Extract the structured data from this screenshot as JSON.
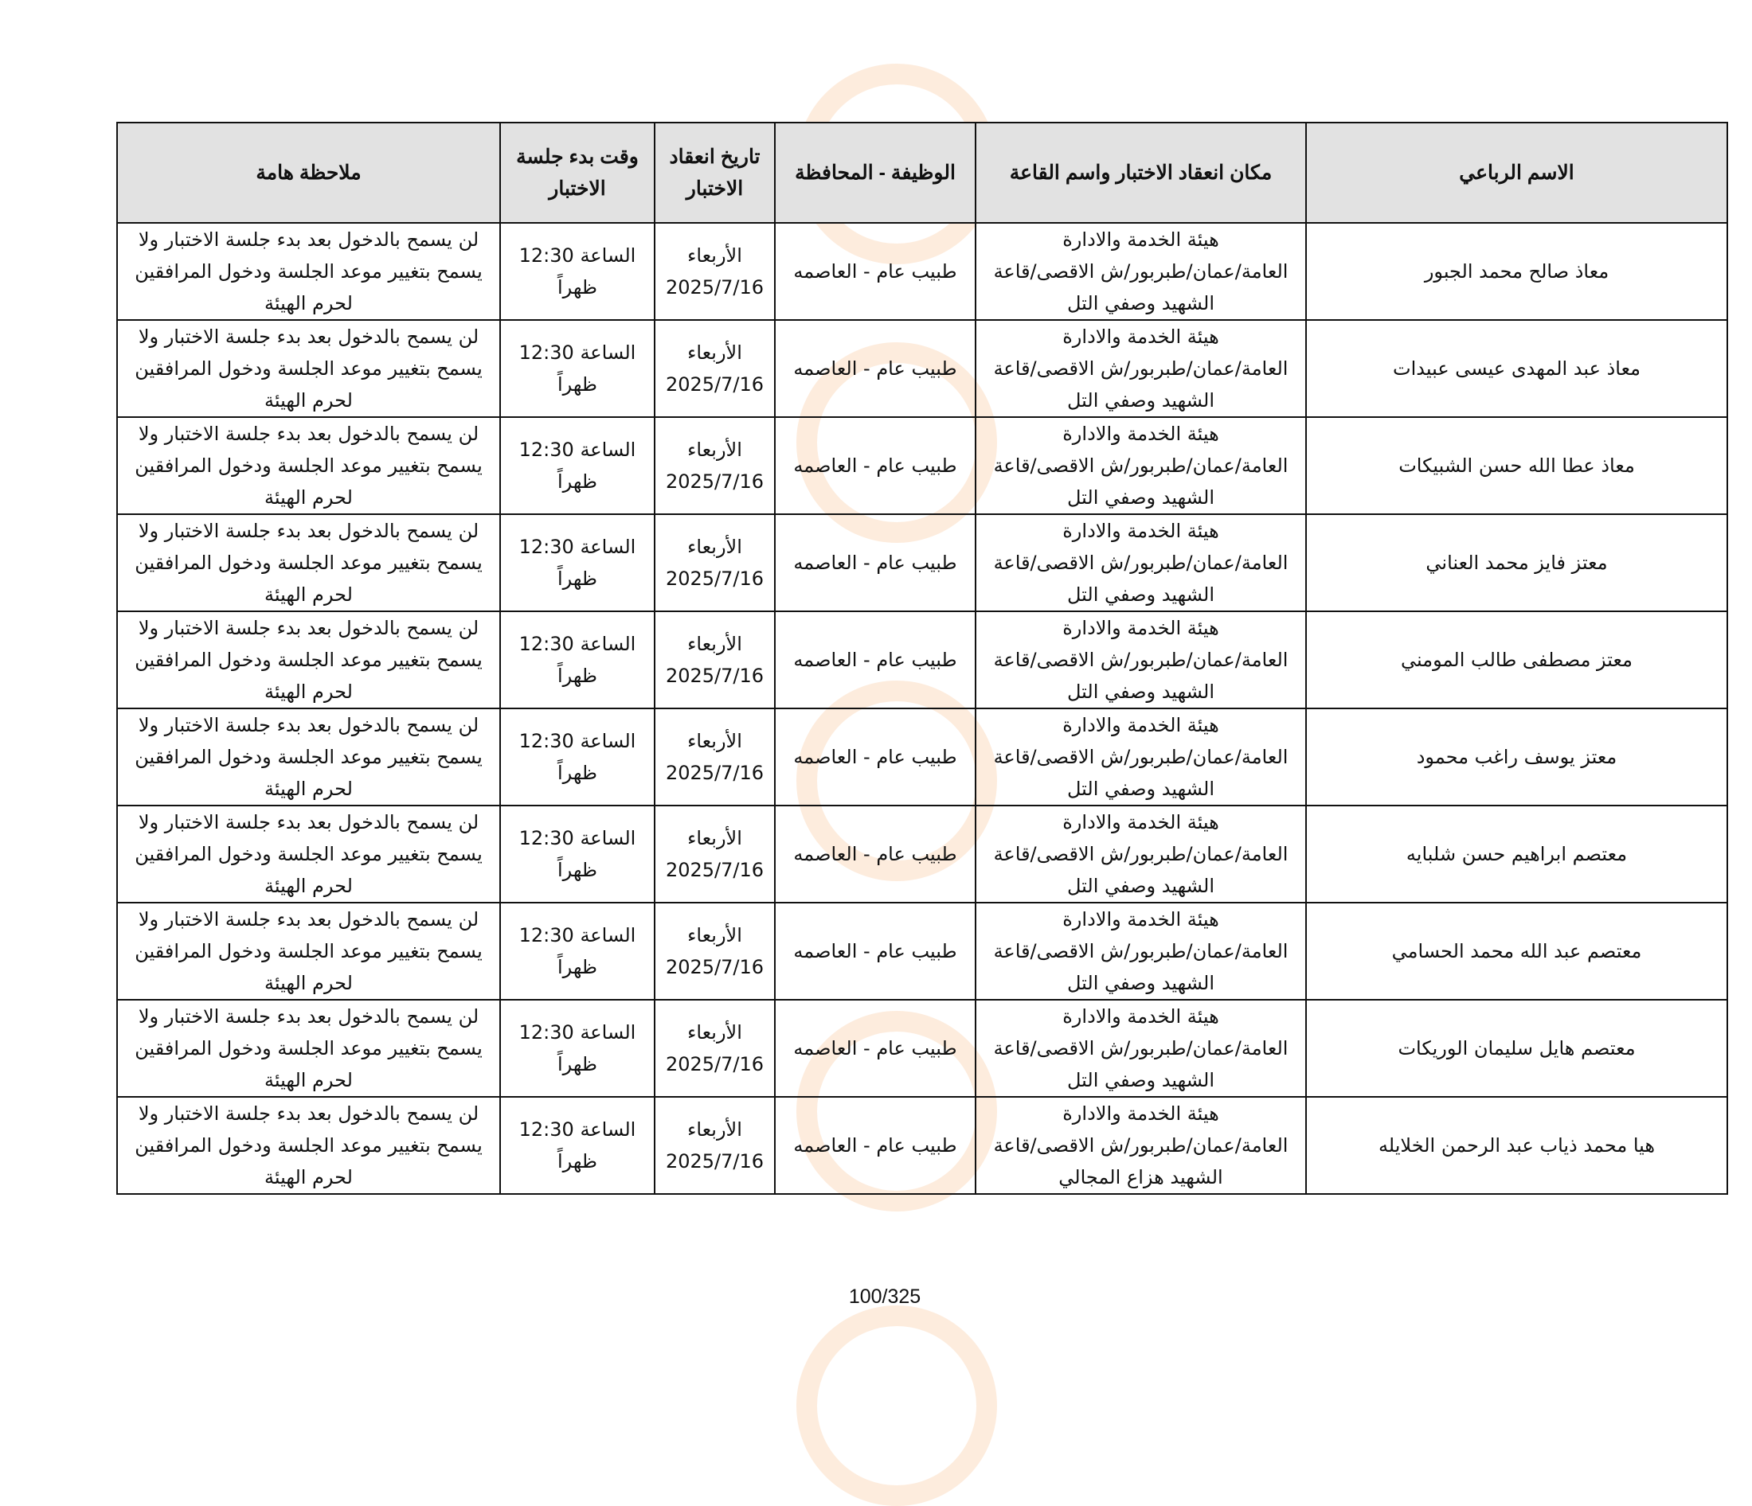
{
  "headers": [
    "الاسم الرباعي",
    "مكان انعقاد الاختبار واسم القاعة",
    "الوظيفة - المحافظة",
    "تاريخ انعقاد الاختبار",
    "وقت بدء جلسة الاختبار",
    "ملاحظة هامة"
  ],
  "rows": [
    {
      "name": "معاذ صالح محمد الجبور",
      "location": [
        "هيئة الخدمة والادارة",
        "العامة/عمان/طبربور/ش الاقصى/قاعة",
        "الشهيد وصفي التل"
      ],
      "job": "طبيب عام - العاصمه",
      "date": [
        "الأربعاء",
        "2025/7/16"
      ],
      "time": [
        "الساعة 12:30",
        "ظهراً"
      ],
      "note": [
        "لن يسمح بالدخول بعد بدء جلسة الاختبار ولا",
        "يسمح بتغيير موعد الجلسة ودخول المرافقين",
        "لحرم الهيئة"
      ]
    },
    {
      "name": "معاذ عبد المهدى عيسى عبيدات",
      "location": [
        "هيئة الخدمة والادارة",
        "العامة/عمان/طبربور/ش الاقصى/قاعة",
        "الشهيد وصفي التل"
      ],
      "job": "طبيب عام - العاصمه",
      "date": [
        "الأربعاء",
        "2025/7/16"
      ],
      "time": [
        "الساعة 12:30",
        "ظهراً"
      ],
      "note": [
        "لن يسمح بالدخول بعد بدء جلسة الاختبار ولا",
        "يسمح بتغيير موعد الجلسة ودخول المرافقين",
        "لحرم الهيئة"
      ]
    },
    {
      "name": "معاذ عطا الله حسن الشبيكات",
      "location": [
        "هيئة الخدمة والادارة",
        "العامة/عمان/طبربور/ش الاقصى/قاعة",
        "الشهيد وصفي التل"
      ],
      "job": "طبيب عام - العاصمه",
      "date": [
        "الأربعاء",
        "2025/7/16"
      ],
      "time": [
        "الساعة 12:30",
        "ظهراً"
      ],
      "note": [
        "لن يسمح بالدخول بعد بدء جلسة الاختبار ولا",
        "يسمح بتغيير موعد الجلسة ودخول المرافقين",
        "لحرم الهيئة"
      ]
    },
    {
      "name": "معتز فايز محمد العناني",
      "location": [
        "هيئة الخدمة والادارة",
        "العامة/عمان/طبربور/ش الاقصى/قاعة",
        "الشهيد وصفي التل"
      ],
      "job": "طبيب عام - العاصمه",
      "date": [
        "الأربعاء",
        "2025/7/16"
      ],
      "time": [
        "الساعة 12:30",
        "ظهراً"
      ],
      "note": [
        "لن يسمح بالدخول بعد بدء جلسة الاختبار ولا",
        "يسمح بتغيير موعد الجلسة ودخول المرافقين",
        "لحرم الهيئة"
      ]
    },
    {
      "name": "معتز مصطفى طالب المومني",
      "location": [
        "هيئة الخدمة والادارة",
        "العامة/عمان/طبربور/ش الاقصى/قاعة",
        "الشهيد وصفي التل"
      ],
      "job": "طبيب عام - العاصمه",
      "date": [
        "الأربعاء",
        "2025/7/16"
      ],
      "time": [
        "الساعة 12:30",
        "ظهراً"
      ],
      "note": [
        "لن يسمح بالدخول بعد بدء جلسة الاختبار ولا",
        "يسمح بتغيير موعد الجلسة ودخول المرافقين",
        "لحرم الهيئة"
      ]
    },
    {
      "name": "معتز يوسف راغب محمود",
      "location": [
        "هيئة الخدمة والادارة",
        "العامة/عمان/طبربور/ش الاقصى/قاعة",
        "الشهيد وصفي التل"
      ],
      "job": "طبيب عام - العاصمه",
      "date": [
        "الأربعاء",
        "2025/7/16"
      ],
      "time": [
        "الساعة 12:30",
        "ظهراً"
      ],
      "note": [
        "لن يسمح بالدخول بعد بدء جلسة الاختبار ولا",
        "يسمح بتغيير موعد الجلسة ودخول المرافقين",
        "لحرم الهيئة"
      ]
    },
    {
      "name": "معتصم ابراهيم حسن شلبايه",
      "location": [
        "هيئة الخدمة والادارة",
        "العامة/عمان/طبربور/ش الاقصى/قاعة",
        "الشهيد وصفي التل"
      ],
      "job": "طبيب عام - العاصمه",
      "date": [
        "الأربعاء",
        "2025/7/16"
      ],
      "time": [
        "الساعة 12:30",
        "ظهراً"
      ],
      "note": [
        "لن يسمح بالدخول بعد بدء جلسة الاختبار ولا",
        "يسمح بتغيير موعد الجلسة ودخول المرافقين",
        "لحرم الهيئة"
      ]
    },
    {
      "name": "معتصم عبد الله محمد الحسامي",
      "location": [
        "هيئة الخدمة والادارة",
        "العامة/عمان/طبربور/ش الاقصى/قاعة",
        "الشهيد وصفي التل"
      ],
      "job": "طبيب عام - العاصمه",
      "date": [
        "الأربعاء",
        "2025/7/16"
      ],
      "time": [
        "الساعة 12:30",
        "ظهراً"
      ],
      "note": [
        "لن يسمح بالدخول بعد بدء جلسة الاختبار ولا",
        "يسمح بتغيير موعد الجلسة ودخول المرافقين",
        "لحرم الهيئة"
      ]
    },
    {
      "name": "معتصم هايل سليمان الوريكات",
      "location": [
        "هيئة الخدمة والادارة",
        "العامة/عمان/طبربور/ش الاقصى/قاعة",
        "الشهيد وصفي التل"
      ],
      "job": "طبيب عام - العاصمه",
      "date": [
        "الأربعاء",
        "2025/7/16"
      ],
      "time": [
        "الساعة 12:30",
        "ظهراً"
      ],
      "note": [
        "لن يسمح بالدخول بعد بدء جلسة الاختبار ولا",
        "يسمح بتغيير موعد الجلسة ودخول المرافقين",
        "لحرم الهيئة"
      ]
    },
    {
      "name": "هيا محمد ذياب عبد الرحمن الخلايله",
      "location": [
        "هيئة الخدمة والادارة",
        "العامة/عمان/طبربور/ش الاقصى/قاعة",
        "الشهيد هزاع المجالي"
      ],
      "job": "طبيب عام - العاصمه",
      "date": [
        "الأربعاء",
        "2025/7/16"
      ],
      "time": [
        "الساعة 12:30",
        "ظهراً"
      ],
      "note": [
        "لن يسمح بالدخول بعد بدء جلسة الاختبار ولا",
        "يسمح بتغيير موعد الجلسة ودخول المرافقين",
        "لحرم الهيئة"
      ]
    }
  ],
  "page_number": "100/325",
  "watermark": {
    "icon": "clock-logo-watermark",
    "color": "#f5aa64"
  }
}
